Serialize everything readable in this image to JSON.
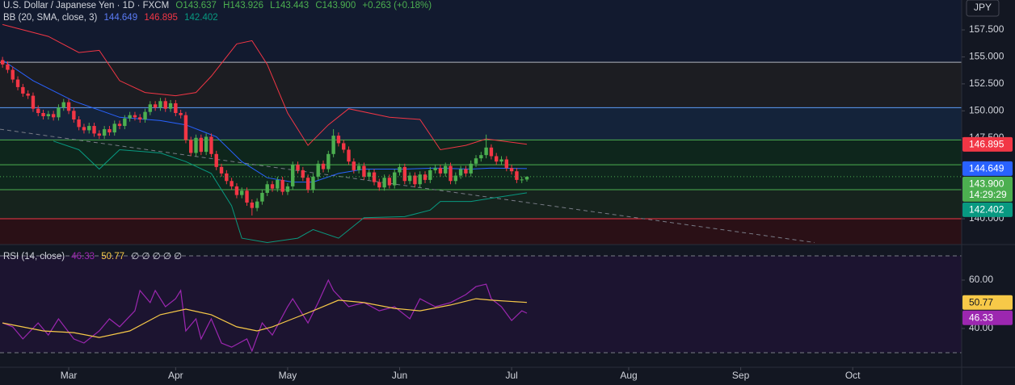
{
  "chart_data": [
    {
      "type": "candlestick",
      "title": "U.S. Dollar / Japanese Yen · 1D · FXCM",
      "ohlc_labels": [
        "O143.637",
        "H143.926",
        "L143.443",
        "C143.900"
      ],
      "change": "+0.263 (+0.18%)",
      "indicator": "BB (20, SMA, close, 3)",
      "currency": "JPY",
      "up_color": "#4caf50",
      "down_color": "#f23645",
      "xlim": [
        -0.5,
        188.4
      ],
      "xticks": [
        {
          "value": 13,
          "label": "Mar"
        },
        {
          "value": 34,
          "label": "Apr"
        },
        {
          "value": 56,
          "label": "May"
        },
        {
          "value": 78,
          "label": "Jun"
        },
        {
          "value": 100,
          "label": "Jul"
        },
        {
          "value": 123,
          "label": "Aug"
        },
        {
          "value": 145,
          "label": "Sep"
        },
        {
          "value": 167,
          "label": "Oct"
        }
      ],
      "ylim": [
        137.61,
        160.27
      ],
      "yticks": [
        {
          "value": 157.5,
          "label": "157.500"
        },
        {
          "value": 155,
          "label": "155.000"
        },
        {
          "value": 152.5,
          "label": "152.500"
        },
        {
          "value": 150,
          "label": "150.000"
        },
        {
          "value": 147.5,
          "label": "147.500"
        },
        {
          "value": 140,
          "label": "140.000"
        }
      ],
      "x": [
        0,
        1,
        2,
        3,
        4,
        5,
        6,
        7,
        8,
        9,
        10,
        11,
        12,
        13,
        14,
        15,
        16,
        17,
        18,
        19,
        20,
        21,
        22,
        23,
        24,
        25,
        26,
        27,
        28,
        29,
        30,
        31,
        32,
        33,
        34,
        35,
        36,
        37,
        38,
        39,
        40,
        41,
        42,
        43,
        44,
        45,
        46,
        47,
        48,
        49,
        50,
        51,
        52,
        53,
        54,
        55,
        56,
        57,
        58,
        59,
        60,
        61,
        62,
        63,
        64,
        65,
        66,
        67,
        68,
        69,
        70,
        71,
        72,
        73,
        74,
        75,
        76,
        77,
        78,
        79,
        80,
        81,
        82,
        83,
        84,
        85,
        86,
        87,
        88,
        89,
        90,
        91,
        92,
        93,
        94,
        95,
        96,
        97,
        98,
        99,
        100,
        101,
        102,
        103
      ],
      "open": [
        154.7,
        154.3,
        153.8,
        152.9,
        152.2,
        151.6,
        151.4,
        150.2,
        149.8,
        149.5,
        149.7,
        149.4,
        150.3,
        150.8,
        150.0,
        149.2,
        148.5,
        148.2,
        148.6,
        147.9,
        147.7,
        148.3,
        148.0,
        148.8,
        148.6,
        149.3,
        149.6,
        149.4,
        149.2,
        149.9,
        150.6,
        150.3,
        150.9,
        150.2,
        150.7,
        149.8,
        149.6,
        147.3,
        146.1,
        147.5,
        146.2,
        147.6,
        146.0,
        144.8,
        144.2,
        143.5,
        143.0,
        142.2,
        142.6,
        141.5,
        141.0,
        141.6,
        142.4,
        143.2,
        142.8,
        143.6,
        142.5,
        143.0,
        145.0,
        144.5,
        143.8,
        142.7,
        143.9,
        145.1,
        144.6,
        146.0,
        147.7,
        147.0,
        146.4,
        145.3,
        144.5,
        144.9,
        143.9,
        144.3,
        143.4,
        142.9,
        143.8,
        143.1,
        144.3,
        144.8,
        143.5,
        144.0,
        143.2,
        144.1,
        143.6,
        144.5,
        144.7,
        144.2,
        144.9,
        143.5,
        144.0,
        144.6,
        144.2,
        145.1,
        145.6,
        145.9,
        146.6,
        145.8,
        145.3,
        145.5,
        144.7,
        144.4,
        143.6,
        143.637
      ],
      "high": [
        155.0,
        154.6,
        154.1,
        153.2,
        152.5,
        151.9,
        151.7,
        150.5,
        150.1,
        150.0,
        150.0,
        150.6,
        151.1,
        151.1,
        150.3,
        149.5,
        148.8,
        148.9,
        148.9,
        148.2,
        148.6,
        148.6,
        149.1,
        149.1,
        149.6,
        149.9,
        149.9,
        149.7,
        150.2,
        150.9,
        150.9,
        151.2,
        151.2,
        151.0,
        151.0,
        150.1,
        149.9,
        147.6,
        147.8,
        147.8,
        147.9,
        147.9,
        146.3,
        145.1,
        144.5,
        143.8,
        143.3,
        142.9,
        142.9,
        141.8,
        141.9,
        142.7,
        143.5,
        143.5,
        143.9,
        143.9,
        143.3,
        145.3,
        145.3,
        144.8,
        144.1,
        144.2,
        145.4,
        145.4,
        146.3,
        148.3,
        148.0,
        147.3,
        146.7,
        145.6,
        145.2,
        145.2,
        144.6,
        144.6,
        143.7,
        144.1,
        144.1,
        144.6,
        145.1,
        145.1,
        144.3,
        144.3,
        144.4,
        144.4,
        144.8,
        145.0,
        145.0,
        145.2,
        145.2,
        144.3,
        144.9,
        144.9,
        145.4,
        145.9,
        146.2,
        147.8,
        146.9,
        146.1,
        145.8,
        145.8,
        145.0,
        144.7,
        143.9,
        143.926
      ],
      "low": [
        154.0,
        153.5,
        152.6,
        151.9,
        151.3,
        151.1,
        149.9,
        149.5,
        149.2,
        149.2,
        149.1,
        149.1,
        150.0,
        149.7,
        148.9,
        148.2,
        147.9,
        147.9,
        147.6,
        147.4,
        147.4,
        147.7,
        147.7,
        148.3,
        148.3,
        149.0,
        149.1,
        148.9,
        148.9,
        149.6,
        150.0,
        150.0,
        149.9,
        149.9,
        149.5,
        149.3,
        147.0,
        145.8,
        145.8,
        145.9,
        145.9,
        145.7,
        144.5,
        143.9,
        143.2,
        142.7,
        141.9,
        141.9,
        141.2,
        140.3,
        140.7,
        141.3,
        142.1,
        142.5,
        142.5,
        142.2,
        142.2,
        142.7,
        144.2,
        143.5,
        142.4,
        142.4,
        143.6,
        144.3,
        144.3,
        145.7,
        146.7,
        146.1,
        145.0,
        144.2,
        144.2,
        143.6,
        143.6,
        143.1,
        142.6,
        142.6,
        142.8,
        142.8,
        144.0,
        143.2,
        143.2,
        142.9,
        142.9,
        143.3,
        143.3,
        144.2,
        143.9,
        143.9,
        143.2,
        143.2,
        143.7,
        143.9,
        143.9,
        144.8,
        145.3,
        145.6,
        145.5,
        145.0,
        145.0,
        144.4,
        144.1,
        143.3,
        143.3,
        143.443
      ],
      "close": [
        154.3,
        153.8,
        152.9,
        152.2,
        151.6,
        151.4,
        150.2,
        149.8,
        149.5,
        149.7,
        149.4,
        150.3,
        150.8,
        150.0,
        149.2,
        148.5,
        148.2,
        148.6,
        147.9,
        147.7,
        148.3,
        148.0,
        148.8,
        148.6,
        149.3,
        149.6,
        149.4,
        149.2,
        149.9,
        150.6,
        150.3,
        150.9,
        150.2,
        150.7,
        149.8,
        149.6,
        147.3,
        146.1,
        147.5,
        146.2,
        147.6,
        146.0,
        144.8,
        144.2,
        143.5,
        143.0,
        142.2,
        142.6,
        141.5,
        141.0,
        141.6,
        142.4,
        143.2,
        142.8,
        143.6,
        142.5,
        143.0,
        145.0,
        144.5,
        143.8,
        142.7,
        143.9,
        145.1,
        144.6,
        146.0,
        147.7,
        147.0,
        146.4,
        145.3,
        144.5,
        144.9,
        143.9,
        144.3,
        143.4,
        142.9,
        143.8,
        143.1,
        144.3,
        144.8,
        143.5,
        144.0,
        143.2,
        144.1,
        143.6,
        144.5,
        144.7,
        144.2,
        144.9,
        143.5,
        144.0,
        144.6,
        144.2,
        145.1,
        145.6,
        145.9,
        146.6,
        145.8,
        145.3,
        145.5,
        144.7,
        144.4,
        143.6,
        143.64,
        143.9
      ],
      "last_price": {
        "value": 143.9,
        "label": "143.900",
        "countdown": "14:29:29",
        "color": "#4caf50"
      },
      "levels": [
        {
          "value": 154.5,
          "color": "#b2b5be",
          "zone": "#1c1d22"
        },
        {
          "value": 150.3,
          "color": "#5b9cf6",
          "zone": "#14233a"
        },
        {
          "value": 147.3,
          "color": "#4caf50",
          "zone": "#0e261c"
        },
        {
          "value": 145.0,
          "color": "#4caf50",
          "zone": "#0e261c"
        },
        {
          "value": 142.7,
          "color": "#4caf50",
          "zone": "#16231d"
        },
        {
          "value": 140.0,
          "color": "#f23645",
          "zone": "#2a1016"
        }
      ],
      "trendline": {
        "x": [
          -0.5,
          159.5
        ],
        "y": [
          148.3,
          137.8
        ],
        "color": "#787b86"
      },
      "series": [
        {
          "color": "#f23645",
          "last_label": "146.895",
          "x": [
            0,
            9,
            15,
            19,
            23,
            28,
            34,
            38,
            41,
            46,
            49,
            52,
            56,
            60,
            64,
            68,
            76,
            82,
            86,
            91,
            95,
            103
          ],
          "values": [
            158.0,
            156.9,
            155.4,
            155.6,
            152.8,
            151.7,
            151.4,
            151.7,
            153.2,
            156.2,
            156.5,
            154.3,
            149.8,
            146.8,
            148.7,
            150.2,
            149.4,
            149.2,
            146.4,
            146.8,
            147.4,
            146.895
          ]
        },
        {
          "color": "#2962ff",
          "last_label": "144.649",
          "x": [
            0,
            6,
            14,
            23,
            31,
            36,
            42,
            47,
            52,
            57,
            61,
            66,
            71,
            79,
            85,
            92,
            96,
            103
          ],
          "values": [
            154.7,
            152.8,
            150.9,
            149.4,
            149.1,
            148.7,
            147.6,
            145.3,
            143.8,
            143.4,
            143.4,
            144.2,
            144.6,
            144.6,
            144.7,
            144.6,
            144.7,
            144.649
          ]
        },
        {
          "color": "#089981",
          "last_label": "142.402",
          "x": [
            10,
            15,
            19,
            23,
            31,
            36,
            41,
            45,
            47,
            52,
            58,
            61,
            66,
            71,
            79,
            84,
            86,
            92,
            96,
            103
          ],
          "values": [
            147.2,
            146.4,
            144.6,
            146.4,
            146.1,
            145.3,
            144.2,
            141.2,
            138.2,
            137.8,
            138.2,
            139.0,
            138.2,
            140.1,
            140.2,
            140.8,
            141.6,
            141.6,
            141.9,
            142.402
          ]
        }
      ]
    },
    {
      "type": "line",
      "title": "RSI (14, close)",
      "extra": "∅ ∅ ∅ ∅ ∅",
      "xlim": [
        -0.5,
        188.4
      ],
      "ylim": [
        24,
        74.67
      ],
      "yticks": [
        {
          "value": 60,
          "label": "60.00"
        },
        {
          "value": 40,
          "label": "40.00"
        }
      ],
      "band_lines": [
        70,
        30
      ],
      "series": [
        {
          "color": "#9c27b0",
          "last_label": "46.33",
          "x": [
            0,
            2,
            4,
            7,
            9,
            11,
            14,
            16,
            19,
            21,
            23,
            26,
            27,
            29,
            30,
            32,
            34,
            35,
            36,
            38,
            39,
            41,
            43,
            45,
            48,
            49,
            51,
            53,
            56,
            57,
            60,
            62,
            64,
            65,
            68,
            71,
            74,
            77,
            80,
            82,
            85,
            88,
            91,
            93,
            95,
            96,
            98,
            100,
            102,
            103
          ],
          "values": [
            42.3,
            40.7,
            35.7,
            42.3,
            37.3,
            44.0,
            35.7,
            34.0,
            39.0,
            44.0,
            40.7,
            47.3,
            55.7,
            50.7,
            55.7,
            49.0,
            52.3,
            55.7,
            39.0,
            44.0,
            35.7,
            44.0,
            34.0,
            32.3,
            35.7,
            30.7,
            42.3,
            37.3,
            49.0,
            52.3,
            42.3,
            50.7,
            60.0,
            55.7,
            49.0,
            50.7,
            47.3,
            49.0,
            44.0,
            52.3,
            49.0,
            50.7,
            54.0,
            57.3,
            58.3,
            52.3,
            49.0,
            43.3,
            47.3,
            46.33
          ]
        },
        {
          "color": "#f7c948",
          "last_label": "50.77",
          "x": [
            0,
            8,
            14,
            19,
            25,
            31,
            36,
            41,
            46,
            50,
            53,
            57,
            61,
            66,
            71,
            77,
            82,
            88,
            93,
            96,
            103
          ],
          "values": [
            42.3,
            39.0,
            38.3,
            36.3,
            39.0,
            45.7,
            48.0,
            45.7,
            40.7,
            39.0,
            40.7,
            44.0,
            47.3,
            51.7,
            50.7,
            48.3,
            47.3,
            49.7,
            52.3,
            51.7,
            50.77
          ]
        }
      ]
    }
  ]
}
